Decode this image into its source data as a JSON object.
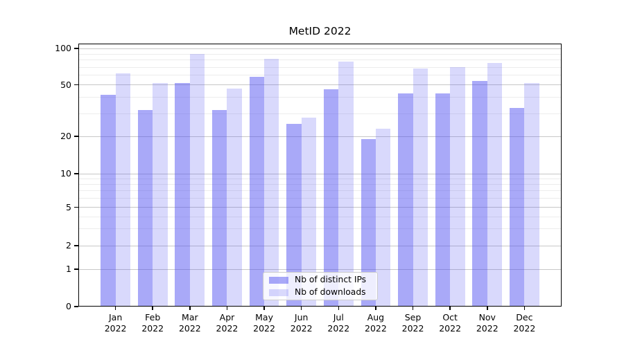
{
  "chart_data": {
    "type": "bar",
    "title": "MetID 2022",
    "scale": "symlog",
    "ylim": [
      0,
      100
    ],
    "y_ticks": [
      0,
      1,
      2,
      5,
      10,
      20,
      50,
      100
    ],
    "y_minor_gridlines": [
      3,
      4,
      6,
      7,
      8,
      9,
      30,
      40,
      60,
      70,
      80,
      90
    ],
    "x_ticks": {
      "months": [
        "Jan",
        "Feb",
        "Mar",
        "Apr",
        "May",
        "Jun",
        "Jul",
        "Aug",
        "Sep",
        "Oct",
        "Nov",
        "Dec"
      ],
      "year": "2022"
    },
    "categories": [
      "Jan 2022",
      "Feb 2022",
      "Mar 2022",
      "Apr 2022",
      "May 2022",
      "Jun 2022",
      "Jul 2022",
      "Aug 2022",
      "Sep 2022",
      "Oct 2022",
      "Nov 2022",
      "Dec 2022"
    ],
    "series": [
      {
        "name": "Nb of distinct IPs",
        "color": "#a9a9f6",
        "color_rgba": "rgba(80,80,240,0.49)",
        "values": [
          42,
          32,
          52,
          32,
          58,
          25,
          46,
          19,
          43,
          43,
          54,
          33
        ]
      },
      {
        "name": "Nb of downloads",
        "color": "#d8d8f8",
        "color_rgba": "rgba(80,80,240,0.22)",
        "values": [
          62,
          52,
          90,
          47,
          82,
          28,
          78,
          23,
          68,
          70,
          76,
          52
        ]
      }
    ],
    "legend_position": "lower center"
  }
}
